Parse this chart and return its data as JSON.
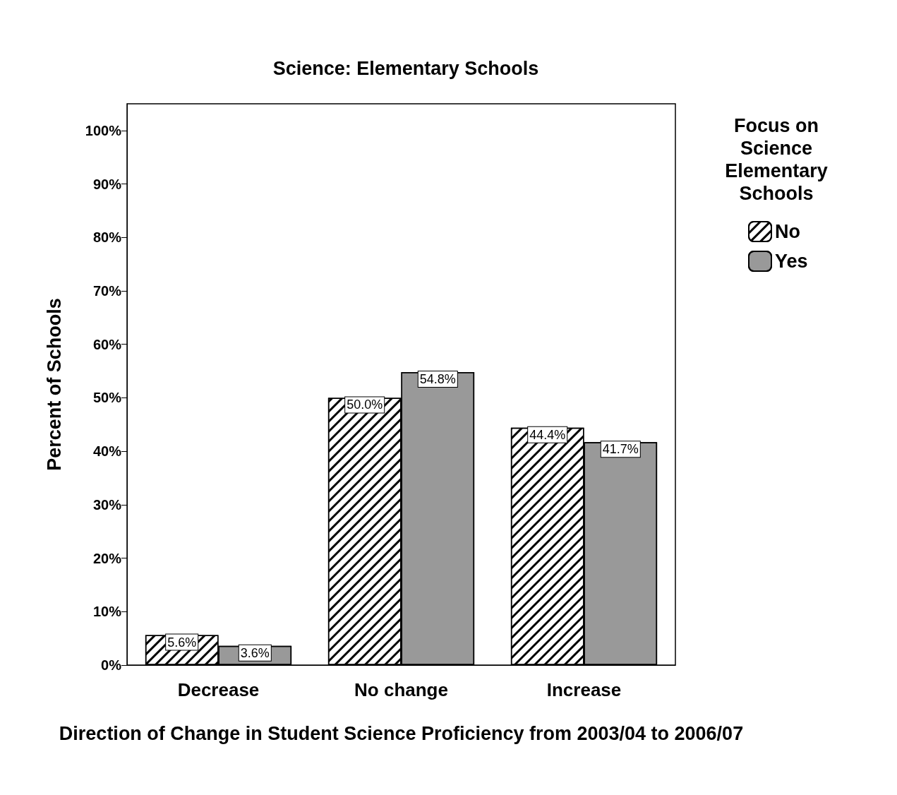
{
  "chart_data": {
    "type": "bar",
    "title": "Science: Elementary Schools",
    "categories": [
      "Decrease",
      "No change",
      "Increase"
    ],
    "xlabel": "Direction of Change in Student Science Proficiency from 2003/04 to 2006/07",
    "ylabel": "Percent of Schools",
    "legend_title": "Focus on Science Elementary Schools",
    "series": [
      {
        "name": "No",
        "color": "#ffffff",
        "values": [
          5.6,
          50.0,
          44.4
        ],
        "value_labels": [
          "5.6%",
          "50.0%",
          "44.4%"
        ]
      },
      {
        "name": "Yes",
        "color": "#999999",
        "values": [
          3.6,
          54.8,
          41.7
        ],
        "value_labels": [
          "3.6%",
          "54.8%",
          "41.7%"
        ]
      }
    ],
    "ylim": [
      0,
      105
    ],
    "yticks": [
      {
        "value": 0,
        "label": "0%"
      },
      {
        "value": 10,
        "label": "10%"
      },
      {
        "value": 20,
        "label": "20%"
      },
      {
        "value": 30,
        "label": "30%"
      },
      {
        "value": 40,
        "label": "40%"
      },
      {
        "value": 50,
        "label": "50%"
      },
      {
        "value": 60,
        "label": "60%"
      },
      {
        "value": 70,
        "label": "70%"
      },
      {
        "value": 80,
        "label": "80%"
      },
      {
        "value": 90,
        "label": "90%"
      },
      {
        "value": 100,
        "label": "100%"
      }
    ],
    "grid": false,
    "legend": "top right"
  }
}
